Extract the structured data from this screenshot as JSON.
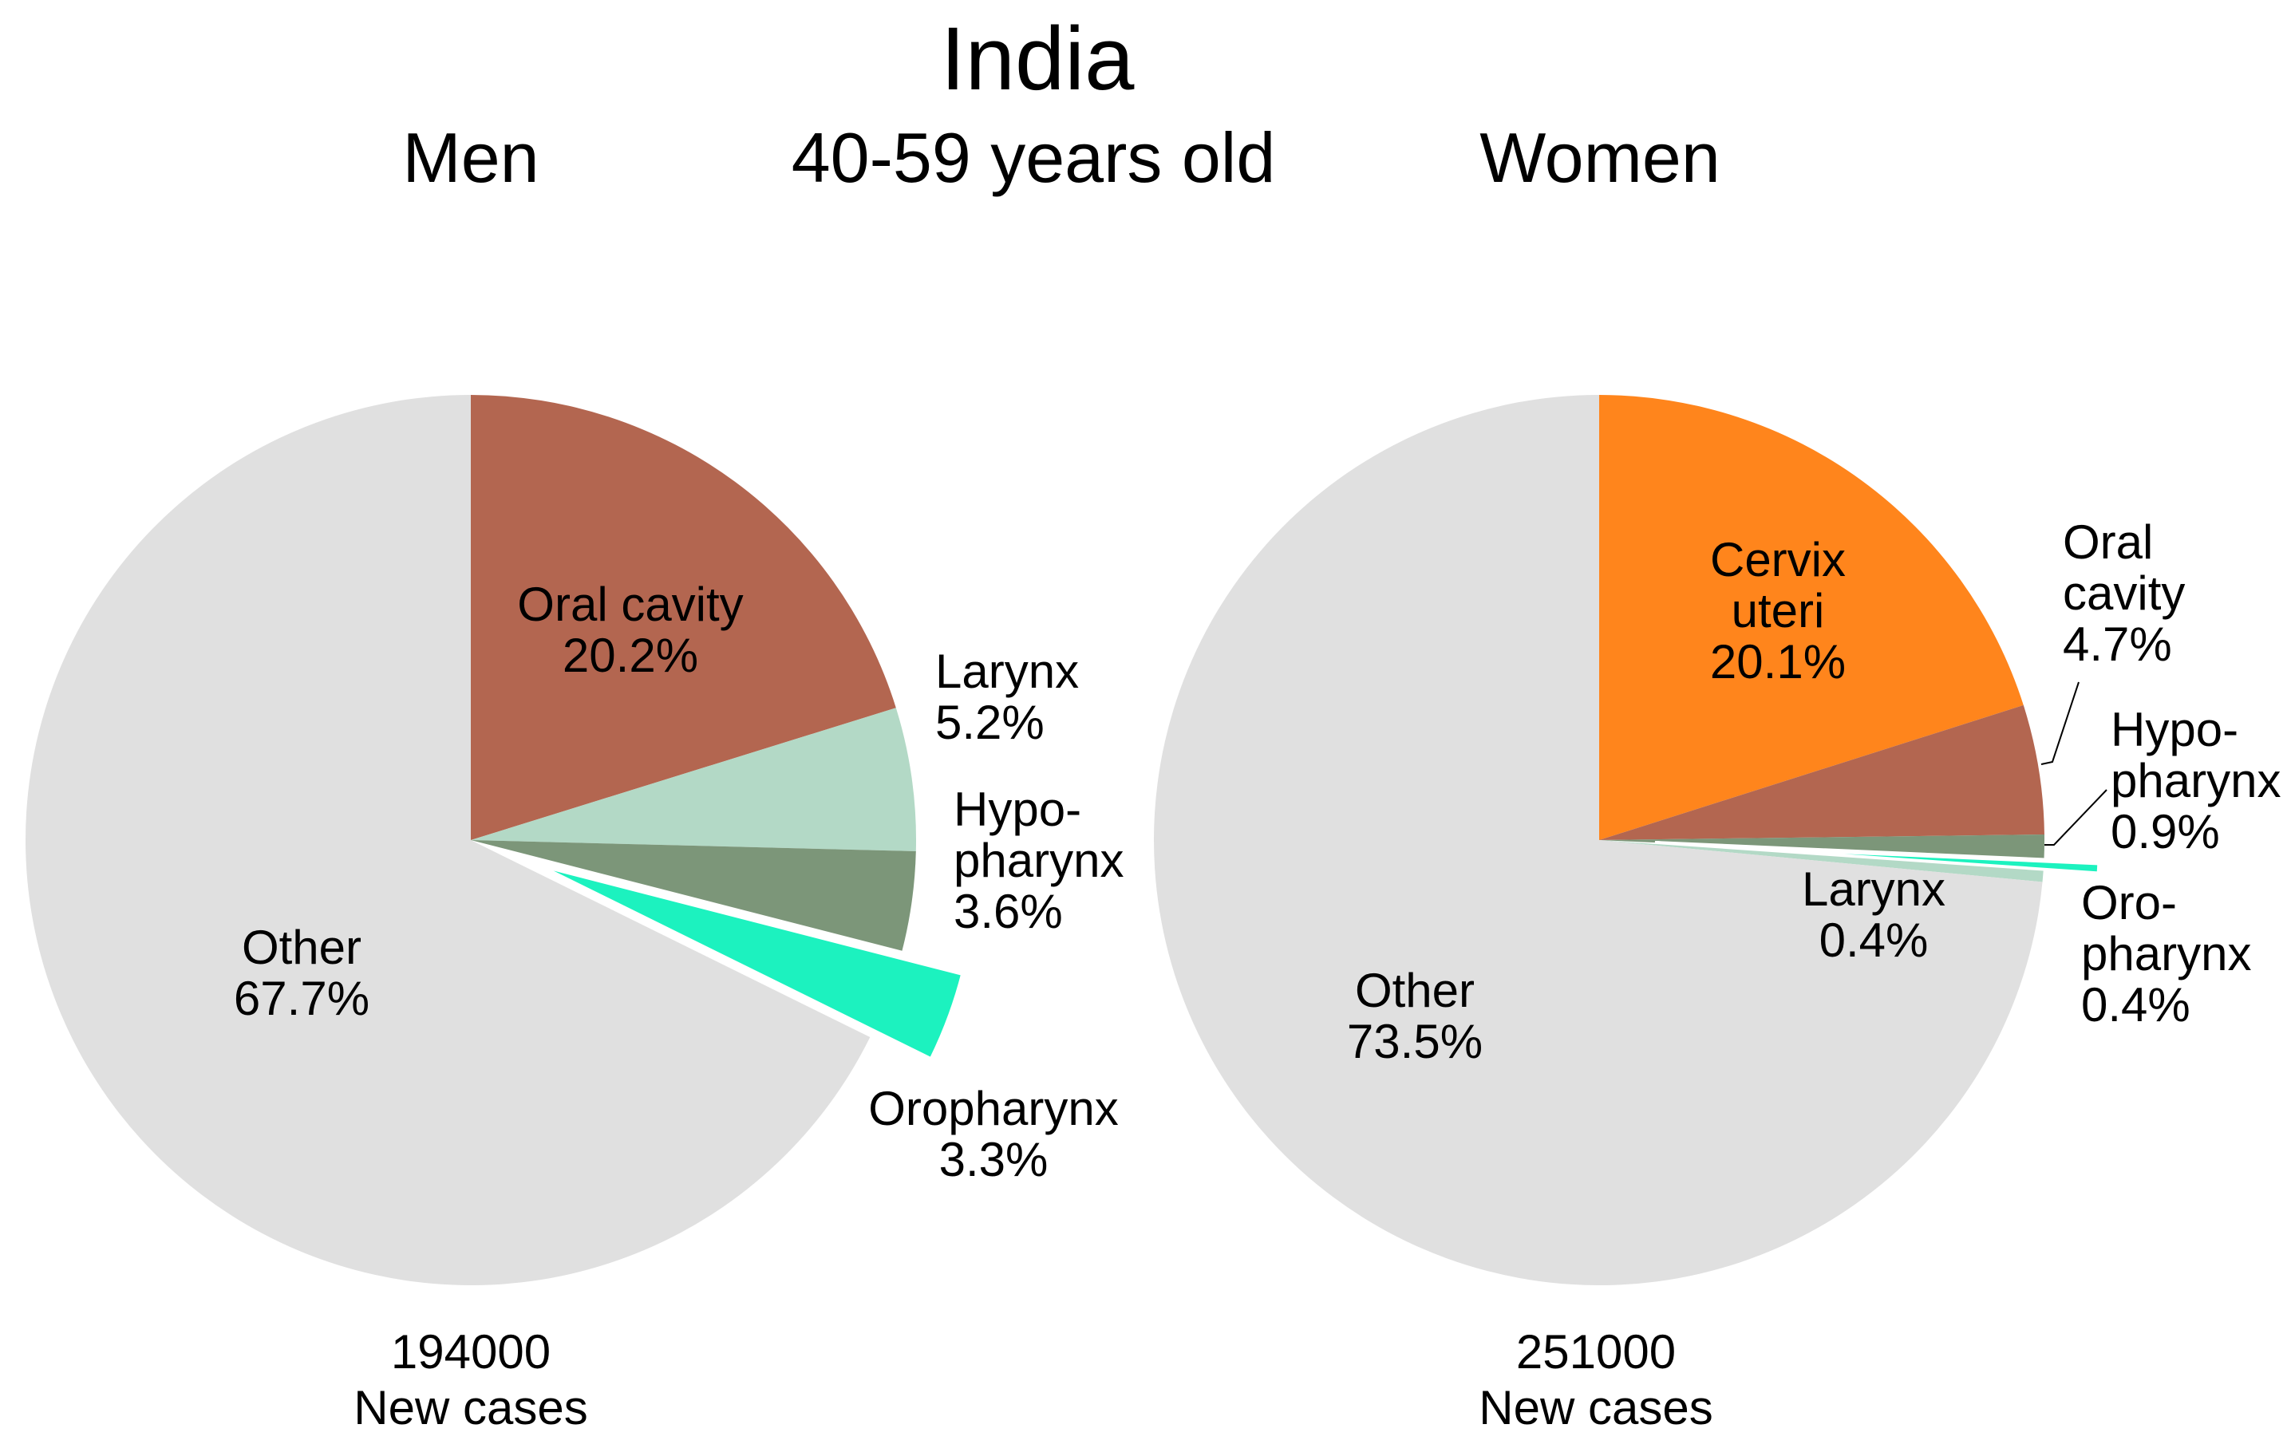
{
  "title": "India",
  "age_group": "40-59 years old",
  "chart_data": [
    {
      "type": "pie",
      "title": "Men",
      "total": "194000",
      "total_label": "New cases",
      "slices": [
        {
          "name": "Oral cavity",
          "lines": [
            "Oral cavity"
          ],
          "value": 20.2,
          "pct_label": "20.2%",
          "color": "#b36650",
          "explode": false
        },
        {
          "name": "Larynx",
          "lines": [
            "Larynx"
          ],
          "value": 5.2,
          "pct_label": "5.2%",
          "color": "#b3d9c6",
          "explode": false
        },
        {
          "name": "Hypopharynx",
          "lines": [
            "Hypo-",
            "pharynx"
          ],
          "value": 3.6,
          "pct_label": "3.6%",
          "color": "#7c9679",
          "explode": false
        },
        {
          "name": "Oropharynx",
          "lines": [
            "Oropharynx"
          ],
          "value": 3.3,
          "pct_label": "3.3%",
          "color": "#1cf2bf",
          "explode": true
        },
        {
          "name": "Other",
          "lines": [
            "Other"
          ],
          "value": 67.7,
          "pct_label": "67.7%",
          "color": "#e0e0e0",
          "explode": false
        }
      ]
    },
    {
      "type": "pie",
      "title": "Women",
      "total": "251000",
      "total_label": "New cases",
      "slices": [
        {
          "name": "Cervix uteri",
          "lines": [
            "Cervix",
            "uteri"
          ],
          "value": 20.1,
          "pct_label": "20.1%",
          "color": "#ff851c",
          "explode": false
        },
        {
          "name": "Oral cavity",
          "lines": [
            "Oral",
            "cavity"
          ],
          "value": 4.7,
          "pct_label": "4.7%",
          "color": "#b36650",
          "explode": false
        },
        {
          "name": "Hypopharynx",
          "lines": [
            "Hypo-",
            "pharynx"
          ],
          "value": 0.9,
          "pct_label": "0.9%",
          "color": "#7c9679",
          "explode": false
        },
        {
          "name": "Oropharynx",
          "lines": [
            "Oro-",
            "pharynx"
          ],
          "value": 0.4,
          "pct_label": "0.4%",
          "color": "#1cf2bf",
          "explode": true
        },
        {
          "name": "Larynx",
          "lines": [
            "Larynx"
          ],
          "value": 0.4,
          "pct_label": "0.4%",
          "color": "#b3d9c6",
          "explode": false
        },
        {
          "name": "Other",
          "lines": [
            "Other"
          ],
          "value": 73.5,
          "pct_label": "73.5%",
          "color": "#e0e0e0",
          "explode": false
        }
      ]
    }
  ]
}
